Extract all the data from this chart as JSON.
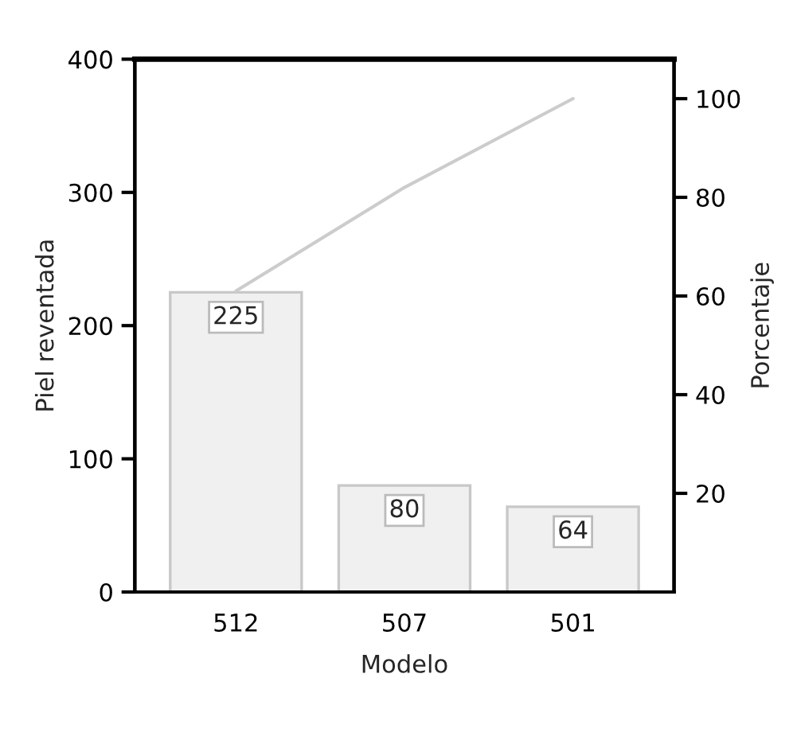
{
  "chart_data": {
    "type": "bar",
    "xlabel": "Modelo",
    "ylabel": "Piel reventada",
    "y2label": "Porcentaje",
    "categories": [
      "512",
      "507",
      "501"
    ],
    "series": [
      {
        "color": "#f0f0f0",
        "values": [
          225,
          80,
          64
        ],
        "value_labels": [
          "225",
          "80",
          "64"
        ]
      },
      {
        "type": "line",
        "axis": "y2",
        "color": "#cccccc",
        "values": [
          61,
          82,
          100
        ]
      }
    ],
    "ylim": [
      0,
      400
    ],
    "yticks": [
      0,
      100,
      200,
      300,
      400
    ],
    "y2lim": [
      0,
      108
    ],
    "y2ticks": [
      20,
      40,
      60,
      80,
      100
    ],
    "grid": false,
    "legend": false
  }
}
